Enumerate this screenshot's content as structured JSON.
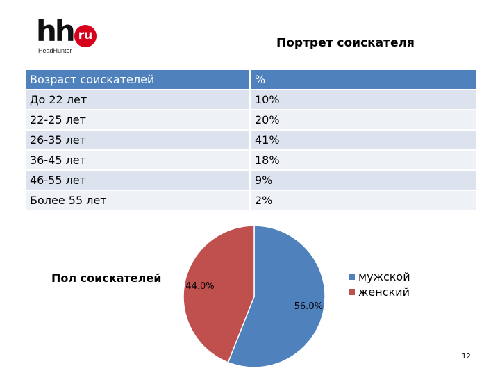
{
  "logo": {
    "main": "hh",
    "badge": "ru",
    "sub": "HeadHunter"
  },
  "title": "Портрет соискателя",
  "age_table": {
    "headers": [
      "Возраст соискателей",
      "%"
    ],
    "rows": [
      [
        "До 22 лет",
        "10%"
      ],
      [
        "22-25 лет",
        "20%"
      ],
      [
        "26-35 лет",
        "41%"
      ],
      [
        "36-45 лет",
        "18%"
      ],
      [
        "46-55 лет",
        "9%"
      ],
      [
        "Более 55 лет",
        "2%"
      ]
    ]
  },
  "gender_title": "Пол соискателей",
  "chart_data": {
    "type": "pie",
    "title": "",
    "categories": [
      "мужской",
      "женский"
    ],
    "values": [
      56.0,
      44.0
    ],
    "labels": [
      "56.0%",
      "44.0%"
    ],
    "colors": [
      "#4f81bd",
      "#c0504d"
    ],
    "legend": "right"
  },
  "page_number": "12"
}
